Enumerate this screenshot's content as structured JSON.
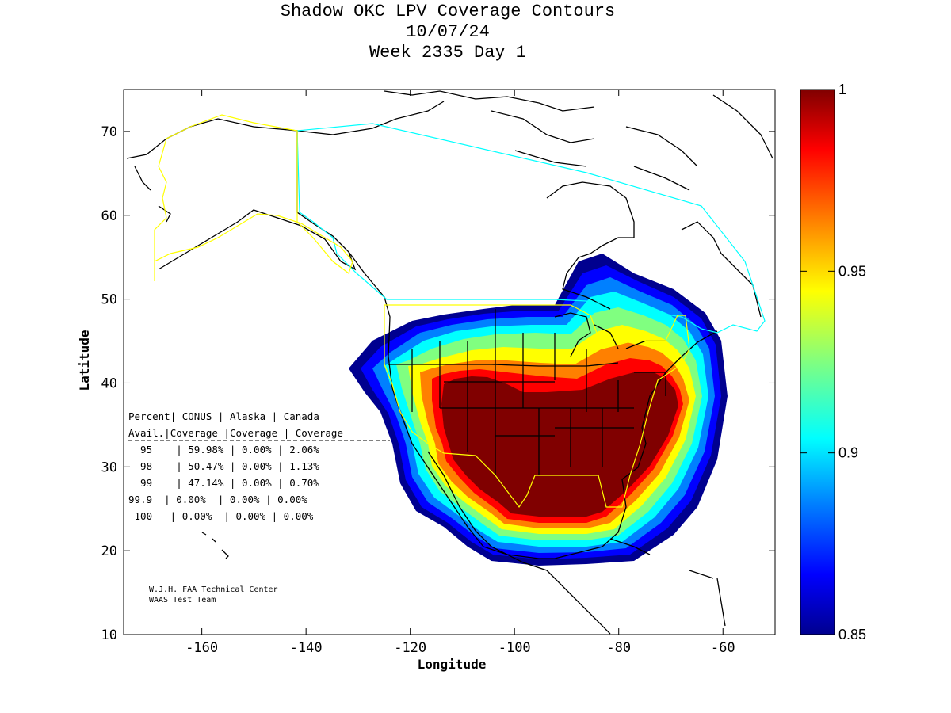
{
  "title": {
    "line1": "Shadow OKC LPV Coverage Contours",
    "line2": "10/07/24",
    "line3": "Week 2335 Day 1"
  },
  "axes": {
    "xlabel": "Longitude",
    "ylabel": "Latitude",
    "x_ticks": [
      "-160",
      "-140",
      "-120",
      "-100",
      "-80",
      "-60"
    ],
    "y_ticks": [
      "10",
      "20",
      "30",
      "40",
      "50",
      "60",
      "70"
    ],
    "xlim": [
      -175,
      -50
    ],
    "ylim": [
      10,
      75
    ]
  },
  "colorbar": {
    "range": [
      0.85,
      1
    ],
    "tick_labels": [
      "1",
      "0.95",
      "0.9",
      "0.85"
    ],
    "colormap": "jet",
    "colors": [
      "#00008f",
      "#0000ff",
      "#0080ff",
      "#00ffff",
      "#80ff80",
      "#ffff00",
      "#ff8000",
      "#ff0000",
      "#800000"
    ]
  },
  "coverage_table": {
    "header_row1": [
      "Percent",
      "CONUS",
      "Alaska",
      "Canada"
    ],
    "header_row2": [
      "Avail.",
      "Coverage",
      "Coverage",
      "Coverage"
    ],
    "rows": [
      {
        "percent": "95",
        "conus": "59.98%",
        "alaska": "0.00%",
        "canada": "2.06%"
      },
      {
        "percent": "98",
        "conus": "50.47%",
        "alaska": "0.00%",
        "canada": "1.13%"
      },
      {
        "percent": "99",
        "conus": "47.14%",
        "alaska": "0.00%",
        "canada": "0.70%"
      },
      {
        "percent": "99.9",
        "conus": "0.00%",
        "alaska": "0.00%",
        "canada": "0.00%"
      },
      {
        "percent": "100",
        "conus": "0.00%",
        "alaska": "0.00%",
        "canada": "0.00%"
      }
    ]
  },
  "credit": {
    "line1": "W.J.H. FAA Technical Center",
    "line2": "WAAS Test Team"
  },
  "boundary_colors": {
    "conus": "#ffff00",
    "alaska": "#ffff00",
    "canada": "#00ffff",
    "coastline": "#000000"
  }
}
